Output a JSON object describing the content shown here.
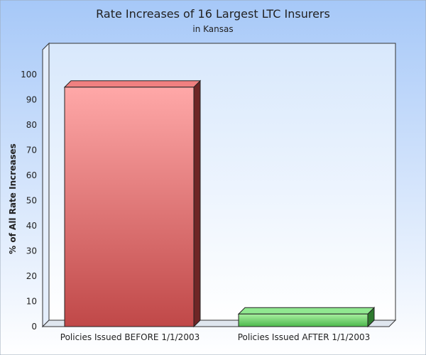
{
  "chart_data": {
    "type": "bar",
    "title": "Rate Increases of 16 Largest LTC Insurers",
    "subtitle": "in Kansas",
    "xlabel": "",
    "ylabel": "% of All Rate Increases",
    "categories": [
      "Policies Issued BEFORE 1/1/2003",
      "Policies Issued AFTER 1/1/2003"
    ],
    "values": [
      95,
      5
    ],
    "ylim": [
      0,
      100
    ],
    "yticks": [
      0,
      10,
      20,
      30,
      40,
      50,
      60,
      70,
      80,
      90,
      100
    ],
    "grid": false,
    "legend": "none",
    "colors": {
      "background_top": "#a6c8f8",
      "background_bottom": "#ffffff",
      "plot_top": "#d8e8fc",
      "plot_bottom": "#ffffff",
      "bar_before_top": "#ffa8a8",
      "bar_before_bottom": "#c04848",
      "bar_after_top": "#a8f0a0",
      "bar_after_bottom": "#4cb84c",
      "text": "#222222"
    }
  }
}
